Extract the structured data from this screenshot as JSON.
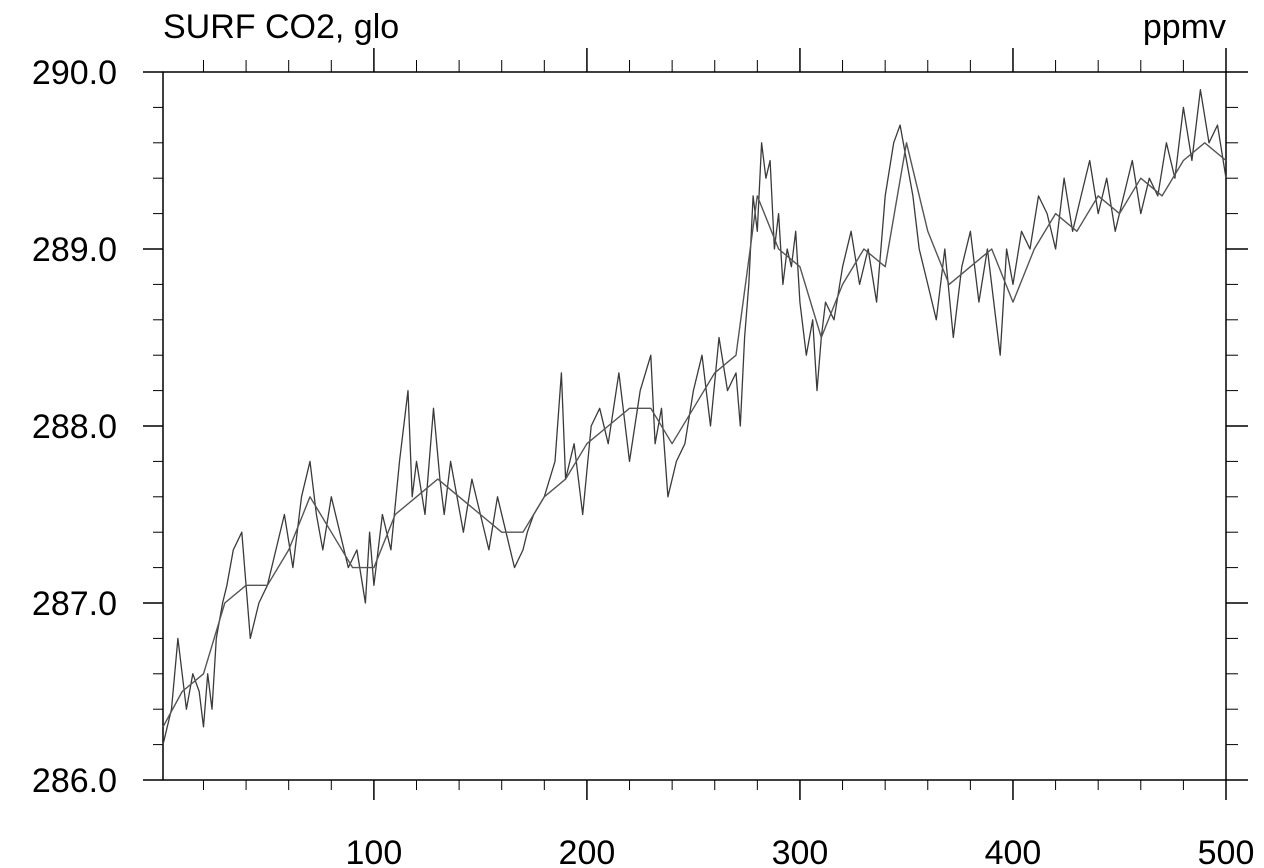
{
  "chart_data": {
    "type": "line",
    "title_left": "SURF CO2, glo",
    "title_right": "ppmv",
    "xlim": [
      1,
      500
    ],
    "ylim": [
      286.0,
      290.0
    ],
    "x_ticks": [
      100,
      200,
      300,
      400,
      500
    ],
    "x_tick_labels": [
      "100",
      "200",
      "300",
      "400",
      "500"
    ],
    "y_ticks": [
      286.0,
      287.0,
      288.0,
      289.0,
      290.0
    ],
    "y_tick_labels": [
      "286.0",
      "287.0",
      "288.0",
      "289.0",
      "290.0"
    ],
    "grid": false,
    "series": [
      {
        "color": "#3a3a3a",
        "style": "noisy",
        "x": [
          1,
          5,
          8,
          12,
          15,
          18,
          20,
          22,
          24,
          26,
          29,
          31,
          34,
          38,
          42,
          46,
          50,
          54,
          58,
          62,
          66,
          70,
          73,
          76,
          80,
          84,
          88,
          92,
          96,
          98,
          100,
          104,
          108,
          112,
          116,
          118,
          120,
          124,
          128,
          131,
          133,
          136,
          139,
          142,
          146,
          150,
          154,
          158,
          162,
          166,
          170,
          172,
          175,
          180,
          185,
          188,
          190,
          194,
          198,
          202,
          206,
          210,
          215,
          220,
          225,
          230,
          232,
          235,
          238,
          242,
          246,
          250,
          254,
          258,
          262,
          266,
          270,
          272,
          274,
          276,
          278,
          280,
          282,
          284,
          286,
          288,
          290,
          292,
          294,
          296,
          298,
          300,
          303,
          306,
          308,
          310,
          312,
          316,
          320,
          324,
          328,
          332,
          336,
          340,
          344,
          347,
          350,
          353,
          356,
          360,
          364,
          368,
          372,
          376,
          380,
          384,
          388,
          392,
          394,
          397,
          400,
          404,
          408,
          412,
          416,
          420,
          424,
          428,
          432,
          436,
          440,
          444,
          448,
          452,
          456,
          460,
          464,
          468,
          472,
          476,
          480,
          484,
          488,
          492,
          496,
          500
        ],
        "y": [
          286.2,
          286.4,
          286.8,
          286.4,
          286.6,
          286.5,
          286.3,
          286.6,
          286.4,
          286.8,
          287.0,
          287.1,
          287.3,
          287.4,
          286.8,
          287.0,
          287.1,
          287.3,
          287.5,
          287.2,
          287.6,
          287.8,
          287.5,
          287.3,
          287.6,
          287.4,
          287.2,
          287.3,
          287.0,
          287.4,
          287.1,
          287.5,
          287.3,
          287.8,
          288.2,
          287.6,
          287.8,
          287.5,
          288.1,
          287.7,
          287.5,
          287.8,
          287.6,
          287.4,
          287.7,
          287.5,
          287.3,
          287.6,
          287.4,
          287.2,
          287.3,
          287.4,
          287.5,
          287.6,
          287.8,
          288.3,
          287.7,
          287.9,
          287.5,
          288.0,
          288.1,
          287.9,
          288.3,
          287.8,
          288.2,
          288.4,
          287.9,
          288.1,
          287.6,
          287.8,
          287.9,
          288.2,
          288.4,
          288.0,
          288.5,
          288.2,
          288.3,
          288.0,
          288.5,
          288.8,
          289.3,
          289.1,
          289.6,
          289.4,
          289.5,
          289.0,
          289.2,
          288.8,
          289.0,
          288.9,
          289.1,
          288.7,
          288.4,
          288.6,
          288.2,
          288.5,
          288.7,
          288.6,
          288.9,
          289.1,
          288.8,
          289.0,
          288.7,
          289.3,
          289.6,
          289.7,
          289.5,
          289.3,
          289.0,
          288.8,
          288.6,
          289.0,
          288.5,
          288.9,
          289.1,
          288.7,
          289.0,
          288.6,
          288.4,
          289.0,
          288.8,
          289.1,
          289.0,
          289.3,
          289.2,
          289.0,
          289.4,
          289.1,
          289.3,
          289.5,
          289.2,
          289.4,
          289.1,
          289.3,
          289.5,
          289.2,
          289.4,
          289.3,
          289.6,
          289.4,
          289.8,
          289.5,
          289.9,
          289.6,
          289.7,
          289.4
        ]
      },
      {
        "color": "#555555",
        "style": "smooth",
        "x": [
          1,
          10,
          20,
          30,
          40,
          50,
          60,
          70,
          80,
          90,
          100,
          110,
          120,
          130,
          140,
          150,
          160,
          170,
          180,
          190,
          200,
          210,
          220,
          230,
          240,
          250,
          260,
          270,
          280,
          290,
          300,
          310,
          320,
          330,
          340,
          350,
          360,
          370,
          380,
          390,
          400,
          410,
          420,
          430,
          440,
          450,
          460,
          470,
          480,
          490,
          500
        ],
        "y": [
          286.3,
          286.5,
          286.6,
          287.0,
          287.1,
          287.1,
          287.3,
          287.6,
          287.4,
          287.2,
          287.2,
          287.5,
          287.6,
          287.7,
          287.6,
          287.5,
          287.4,
          287.4,
          287.6,
          287.7,
          287.9,
          288.0,
          288.1,
          288.1,
          287.9,
          288.1,
          288.3,
          288.4,
          289.3,
          289.0,
          288.9,
          288.5,
          288.8,
          289.0,
          288.9,
          289.6,
          289.1,
          288.8,
          288.9,
          289.0,
          288.7,
          289.0,
          289.2,
          289.1,
          289.3,
          289.2,
          289.4,
          289.3,
          289.5,
          289.6,
          289.5
        ]
      }
    ]
  }
}
